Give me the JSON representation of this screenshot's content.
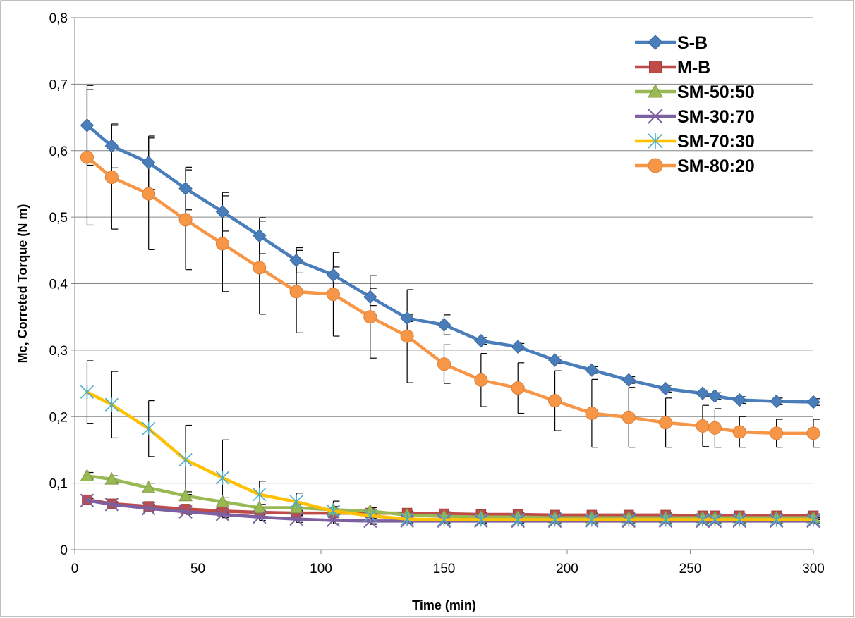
{
  "chart_data": {
    "type": "line",
    "title": "",
    "xlabel": "Time (min)",
    "ylabel": "Mc, Correted Torque (N m)",
    "xlim": [
      0,
      300
    ],
    "ylim": [
      0,
      0.8
    ],
    "x_ticks": [
      0,
      50,
      100,
      150,
      200,
      250,
      300
    ],
    "x_tick_labels": [
      "0",
      "50",
      "100",
      "150",
      "200",
      "250",
      "300"
    ],
    "y_ticks": [
      0,
      0.1,
      0.2,
      0.3,
      0.4,
      0.5,
      0.6,
      0.7,
      0.8
    ],
    "y_tick_labels": [
      "0",
      "0,1",
      "0,2",
      "0,3",
      "0,4",
      "0,5",
      "0,6",
      "0,7",
      "0,8"
    ],
    "grid": "horizontal",
    "legend_position": "top-right",
    "series": [
      {
        "name": "S-B",
        "color": "#4a7ebb",
        "marker": "diamond",
        "x": [
          5,
          15,
          30,
          45,
          60,
          75,
          90,
          105,
          120,
          135,
          150,
          165,
          180,
          195,
          210,
          225,
          240,
          255,
          260,
          270,
          285,
          300
        ],
        "y": [
          0.638,
          0.607,
          0.582,
          0.543,
          0.508,
          0.472,
          0.435,
          0.413,
          0.38,
          0.348,
          0.338,
          0.314,
          0.305,
          0.285,
          0.27,
          0.255,
          0.242,
          0.235,
          0.231,
          0.225,
          0.223,
          0.222
        ],
        "err": [
          0.06,
          0.033,
          0.04,
          0.032,
          0.029,
          0.027,
          0.019,
          0.012,
          0.013,
          0.005,
          0.015,
          0.005,
          0.005,
          0.005,
          0.005,
          0.005,
          0.005,
          0.005,
          0.005,
          0.005,
          0.005,
          0.005
        ]
      },
      {
        "name": "M-B",
        "color": "#be4b48",
        "marker": "square",
        "x": [
          5,
          15,
          30,
          45,
          60,
          75,
          90,
          105,
          120,
          135,
          150,
          165,
          180,
          195,
          210,
          225,
          240,
          255,
          260,
          270,
          285,
          300
        ],
        "y": [
          0.075,
          0.069,
          0.065,
          0.061,
          0.058,
          0.056,
          0.055,
          0.055,
          0.055,
          0.055,
          0.054,
          0.053,
          0.053,
          0.052,
          0.052,
          0.052,
          0.052,
          0.051,
          0.051,
          0.051,
          0.051,
          0.051
        ],
        "err": [
          0.003,
          0.003,
          0.003,
          0.003,
          0.003,
          0.003,
          0.003,
          0.003,
          0.003,
          0.003,
          0.003,
          0.003,
          0.003,
          0.003,
          0.003,
          0.003,
          0.003,
          0.003,
          0.003,
          0.003,
          0.003,
          0.003
        ]
      },
      {
        "name": "SM-50:50",
        "color": "#98b954",
        "marker": "triangle",
        "x": [
          5,
          15,
          30,
          45,
          60,
          75,
          90,
          105,
          120,
          135,
          150,
          165,
          180,
          195,
          210,
          225,
          240,
          255,
          260,
          270,
          285,
          300
        ],
        "y": [
          0.111,
          0.106,
          0.093,
          0.081,
          0.072,
          0.063,
          0.063,
          0.06,
          0.058,
          0.052,
          0.05,
          0.049,
          0.049,
          0.048,
          0.048,
          0.048,
          0.048,
          0.048,
          0.048,
          0.048,
          0.048,
          0.048
        ],
        "err": [
          0.005,
          0.005,
          0.007,
          0.006,
          0.006,
          0.005,
          0.005,
          0.005,
          0.005,
          0.003,
          0.003,
          0.003,
          0.003,
          0.003,
          0.003,
          0.003,
          0.003,
          0.003,
          0.003,
          0.003,
          0.003,
          0.003
        ]
      },
      {
        "name": "SM-30:70",
        "color": "#7d60a0",
        "marker": "x",
        "x": [
          5,
          15,
          30,
          45,
          60,
          75,
          90,
          105,
          120,
          135,
          150,
          165,
          180,
          195,
          210,
          225,
          240,
          255,
          260,
          270,
          285,
          300
        ],
        "y": [
          0.074,
          0.068,
          0.062,
          0.057,
          0.053,
          0.049,
          0.046,
          0.044,
          0.043,
          0.043,
          0.043,
          0.043,
          0.043,
          0.043,
          0.043,
          0.043,
          0.043,
          0.043,
          0.043,
          0.043,
          0.043,
          0.043
        ],
        "err": [
          0.003,
          0.003,
          0.003,
          0.004,
          0.005,
          0.005,
          0.005,
          0.005,
          0.004,
          0.003,
          0.003,
          0.003,
          0.003,
          0.003,
          0.003,
          0.003,
          0.003,
          0.003,
          0.003,
          0.003,
          0.003,
          0.003
        ]
      },
      {
        "name": "SM-70:30",
        "color": "#ffc000",
        "marker": "star",
        "x": [
          5,
          15,
          30,
          45,
          60,
          75,
          90,
          105,
          120,
          135,
          150,
          165,
          180,
          195,
          210,
          225,
          240,
          255,
          260,
          270,
          285,
          300
        ],
        "y": [
          0.237,
          0.218,
          0.182,
          0.135,
          0.108,
          0.083,
          0.072,
          0.058,
          0.051,
          0.046,
          0.045,
          0.045,
          0.045,
          0.045,
          0.045,
          0.045,
          0.045,
          0.045,
          0.045,
          0.045,
          0.045,
          0.045
        ],
        "err": [
          0.047,
          0.05,
          0.042,
          0.052,
          0.057,
          0.02,
          0.013,
          0.015,
          0.013,
          0.003,
          0.003,
          0.003,
          0.003,
          0.003,
          0.003,
          0.003,
          0.003,
          0.003,
          0.003,
          0.003,
          0.003,
          0.003
        ]
      },
      {
        "name": "SM-80:20",
        "color": "#f79646",
        "marker": "circle",
        "x": [
          5,
          15,
          30,
          45,
          60,
          75,
          90,
          105,
          120,
          135,
          150,
          165,
          180,
          195,
          210,
          225,
          240,
          255,
          260,
          270,
          285,
          300
        ],
        "y": [
          0.59,
          0.56,
          0.535,
          0.496,
          0.46,
          0.424,
          0.388,
          0.384,
          0.35,
          0.321,
          0.279,
          0.255,
          0.243,
          0.224,
          0.205,
          0.199,
          0.191,
          0.186,
          0.183,
          0.177,
          0.175,
          0.175
        ],
        "err": [
          0.102,
          0.078,
          0.084,
          0.075,
          0.072,
          0.07,
          0.062,
          0.063,
          0.062,
          0.07,
          0.029,
          0.04,
          0.038,
          0.045,
          0.051,
          0.045,
          0.037,
          0.031,
          0.029,
          0.023,
          0.021,
          0.021
        ]
      }
    ]
  }
}
